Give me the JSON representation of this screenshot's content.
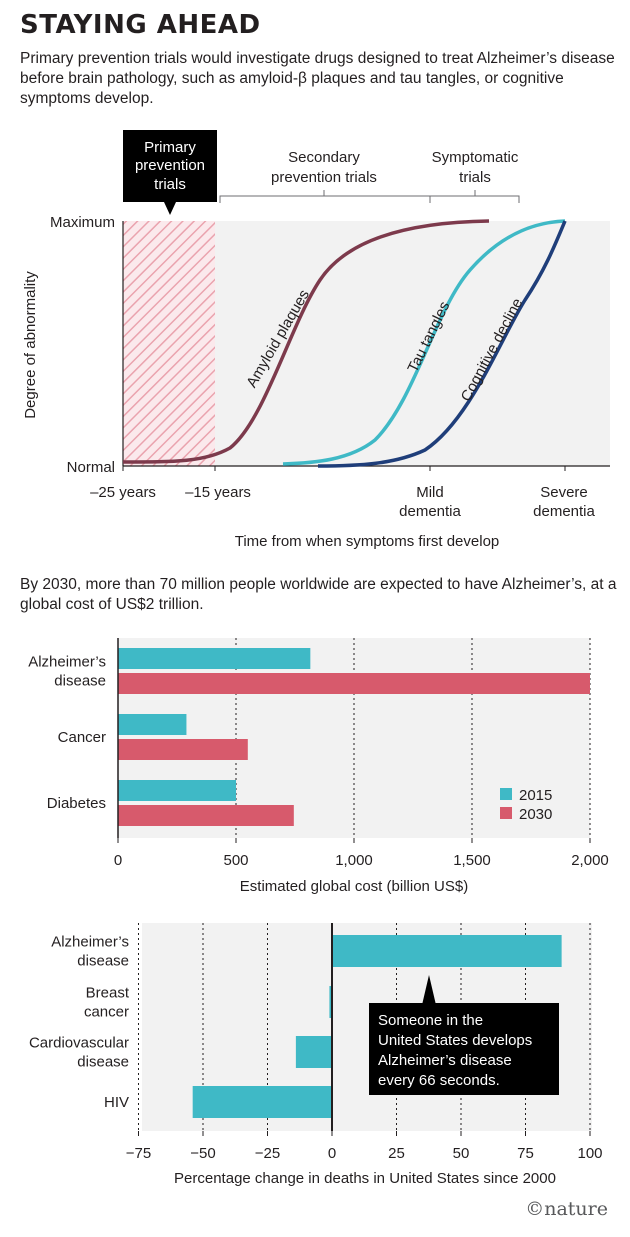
{
  "title": "STAYING AHEAD",
  "intro1": "Primary prevention trials would investigate drugs designed to treat Alzheimer’s disease before brain pathology, such as amyloid-β plaques and tau tangles, or cognitive symptoms develop.",
  "intro2": "By 2030, more than 70 million people worldwide are expected to have Alzheimer’s, at a global cost of US$2 trillion.",
  "credit": "©nature",
  "colors": {
    "amyloid": "#7d3a4c",
    "tau": "#3fb9c6",
    "cognitive": "#1f3e7a",
    "y2015": "#3fb9c6",
    "y2030": "#d75a6c",
    "hatch": "#e89aa7"
  },
  "chart_data": [
    {
      "type": "line",
      "xlabel": "Time from when symptoms first develop",
      "ylabel": "Degree of abnormality",
      "y_ticks": [
        "Normal",
        "Maximum"
      ],
      "x_ticks": [
        {
          "lines": [
            "–25 years"
          ]
        },
        {
          "lines": [
            "–15 years"
          ]
        },
        {
          "lines": [
            "Mild",
            "dementia"
          ]
        },
        {
          "lines": [
            "Severe",
            "dementia"
          ]
        }
      ],
      "phases": {
        "primary": [
          "Primary",
          "prevention",
          "trials"
        ],
        "secondary": [
          "Secondary",
          "prevention trials"
        ],
        "symptomatic": [
          "Symptomatic",
          "trials"
        ]
      },
      "series": [
        {
          "name": "Amyloid plaques",
          "color": "#7d3a4c"
        },
        {
          "name": "Tau tangles",
          "color": "#3fb9c6"
        },
        {
          "name": "Cognitive decline",
          "color": "#1f3e7a"
        }
      ]
    },
    {
      "type": "bar",
      "categories": [
        [
          "Alzheimer’s",
          "disease"
        ],
        [
          "Cancer"
        ],
        [
          "Diabetes"
        ]
      ],
      "series": [
        {
          "name": "2015",
          "values": [
            815,
            290,
            500
          ],
          "color": "#3fb9c6"
        },
        {
          "name": "2030",
          "values": [
            2000,
            550,
            745
          ],
          "color": "#d75a6c"
        }
      ],
      "xlabel": "Estimated global cost (billion US$)",
      "xlim": [
        0,
        2000
      ],
      "ticks": [
        0,
        500,
        1000,
        1500,
        2000
      ],
      "tick_labels": [
        "0",
        "500",
        "1,000",
        "1,500",
        "2,000"
      ],
      "legend_position": "bottom-right"
    },
    {
      "type": "bar",
      "categories": [
        [
          "Alzheimer’s",
          "disease"
        ],
        [
          "Breast",
          "cancer"
        ],
        [
          "Cardiovascular",
          "disease"
        ],
        [
          "HIV"
        ]
      ],
      "values": [
        89,
        -1,
        -14,
        -54
      ],
      "color": "#3fb9c6",
      "xlabel": "Percentage change in deaths in United States since 2000",
      "xlim": [
        -80,
        100
      ],
      "ticks": [
        -75,
        -50,
        -25,
        0,
        25,
        50,
        75,
        100
      ],
      "tick_labels": [
        "−75",
        "−50",
        "−25",
        "0",
        "25",
        "50",
        "75",
        "100"
      ],
      "callout": [
        "Someone in the",
        "United States develops",
        "Alzheimer’s disease",
        "every 66 seconds."
      ]
    }
  ]
}
